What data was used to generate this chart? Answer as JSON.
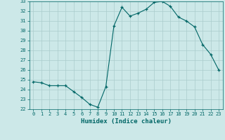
{
  "x": [
    0,
    1,
    2,
    3,
    4,
    5,
    6,
    7,
    8,
    9,
    10,
    11,
    12,
    13,
    14,
    15,
    16,
    17,
    18,
    19,
    20,
    21,
    22,
    23
  ],
  "y": [
    24.8,
    24.7,
    24.4,
    24.4,
    24.4,
    23.8,
    23.2,
    22.5,
    22.2,
    24.3,
    30.5,
    32.4,
    31.5,
    31.8,
    32.2,
    32.9,
    33.0,
    32.5,
    31.4,
    31.0,
    30.4,
    28.6,
    27.6,
    26.0
  ],
  "title": "",
  "xlabel": "Humidex (Indice chaleur)",
  "ylabel": "",
  "xlim": [
    -0.5,
    23.5
  ],
  "ylim": [
    22,
    33
  ],
  "yticks": [
    22,
    23,
    24,
    25,
    26,
    27,
    28,
    29,
    30,
    31,
    32,
    33
  ],
  "xticks": [
    0,
    1,
    2,
    3,
    4,
    5,
    6,
    7,
    8,
    9,
    10,
    11,
    12,
    13,
    14,
    15,
    16,
    17,
    18,
    19,
    20,
    21,
    22,
    23
  ],
  "line_color": "#006666",
  "marker_color": "#006666",
  "bg_color": "#cce8e8",
  "grid_color": "#aacccc",
  "xlabel_color": "#006666",
  "tick_color": "#006666"
}
